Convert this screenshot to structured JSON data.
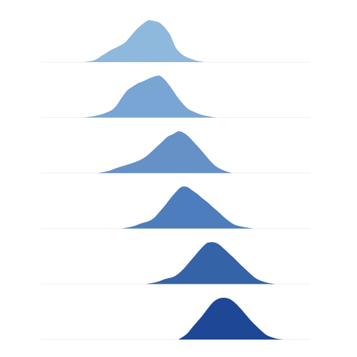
{
  "chart_data": {
    "type": "area",
    "subtype": "ridgeline",
    "title": "",
    "xlabel": "",
    "ylabel": "",
    "xlim": [
      0,
      100
    ],
    "grid": false,
    "legend": "none",
    "axes_visible": false,
    "baseline_color": "#eeeeee",
    "series": [
      {
        "color": "#8fb8dd",
        "x": [
          16,
          20,
          23,
          26,
          28,
          31,
          33,
          35,
          37,
          39,
          40,
          42,
          44,
          46,
          48,
          50,
          52,
          54,
          56,
          58,
          61
        ],
        "y": [
          0.0,
          0.05,
          0.17,
          0.29,
          0.35,
          0.46,
          0.6,
          0.75,
          0.87,
          0.97,
          1.0,
          0.98,
          0.94,
          0.82,
          0.64,
          0.35,
          0.2,
          0.12,
          0.07,
          0.03,
          0.0
        ]
      },
      {
        "color": "#78a5d3",
        "x": [
          16,
          20,
          23,
          26,
          28,
          30,
          32,
          34,
          36,
          38,
          40,
          42,
          44,
          46,
          48,
          50,
          52,
          54,
          56,
          60,
          65
        ],
        "y": [
          0.0,
          0.04,
          0.09,
          0.17,
          0.29,
          0.48,
          0.65,
          0.74,
          0.82,
          0.87,
          0.93,
          0.98,
          1.0,
          0.9,
          0.74,
          0.55,
          0.38,
          0.24,
          0.16,
          0.06,
          0.0
        ]
      },
      {
        "color": "#6591c7",
        "x": [
          21,
          25,
          28,
          31,
          34,
          37,
          39,
          41,
          43,
          45,
          47,
          49,
          51,
          53,
          55,
          57,
          59,
          61,
          63,
          65,
          68,
          71
        ],
        "y": [
          0.0,
          0.05,
          0.12,
          0.18,
          0.24,
          0.32,
          0.4,
          0.51,
          0.63,
          0.75,
          0.87,
          0.93,
          1.0,
          0.96,
          0.86,
          0.72,
          0.58,
          0.43,
          0.28,
          0.16,
          0.06,
          0.0
        ]
      },
      {
        "color": "#4d7dbd",
        "x": [
          30,
          34,
          37,
          40,
          42,
          44,
          46,
          48,
          50,
          52,
          54,
          56,
          58,
          60,
          62,
          64,
          66,
          68,
          70,
          72,
          75,
          79
        ],
        "y": [
          0.0,
          0.05,
          0.12,
          0.18,
          0.26,
          0.4,
          0.55,
          0.72,
          0.87,
          0.99,
          1.0,
          0.92,
          0.83,
          0.72,
          0.62,
          0.5,
          0.39,
          0.27,
          0.17,
          0.09,
          0.04,
          0.0
        ]
      },
      {
        "color": "#3563a8",
        "x": [
          39,
          43,
          46,
          49,
          51,
          53,
          55,
          57,
          59,
          61,
          62,
          64,
          66,
          68,
          70,
          72,
          74,
          76,
          78,
          80,
          83,
          87
        ],
        "y": [
          0.0,
          0.05,
          0.12,
          0.17,
          0.25,
          0.37,
          0.52,
          0.67,
          0.82,
          0.95,
          0.99,
          1.0,
          0.95,
          0.84,
          0.72,
          0.6,
          0.47,
          0.35,
          0.23,
          0.13,
          0.05,
          0.0
        ]
      },
      {
        "color": "#1e4896",
        "x": [
          51,
          54,
          56,
          58,
          60,
          62,
          64,
          66,
          68,
          70,
          72,
          74,
          76,
          78,
          80,
          82,
          84,
          87,
          90
        ],
        "y": [
          0.0,
          0.13,
          0.28,
          0.43,
          0.58,
          0.75,
          0.9,
          0.98,
          1.0,
          0.97,
          0.88,
          0.75,
          0.6,
          0.45,
          0.32,
          0.2,
          0.1,
          0.03,
          0.0
        ]
      }
    ]
  }
}
